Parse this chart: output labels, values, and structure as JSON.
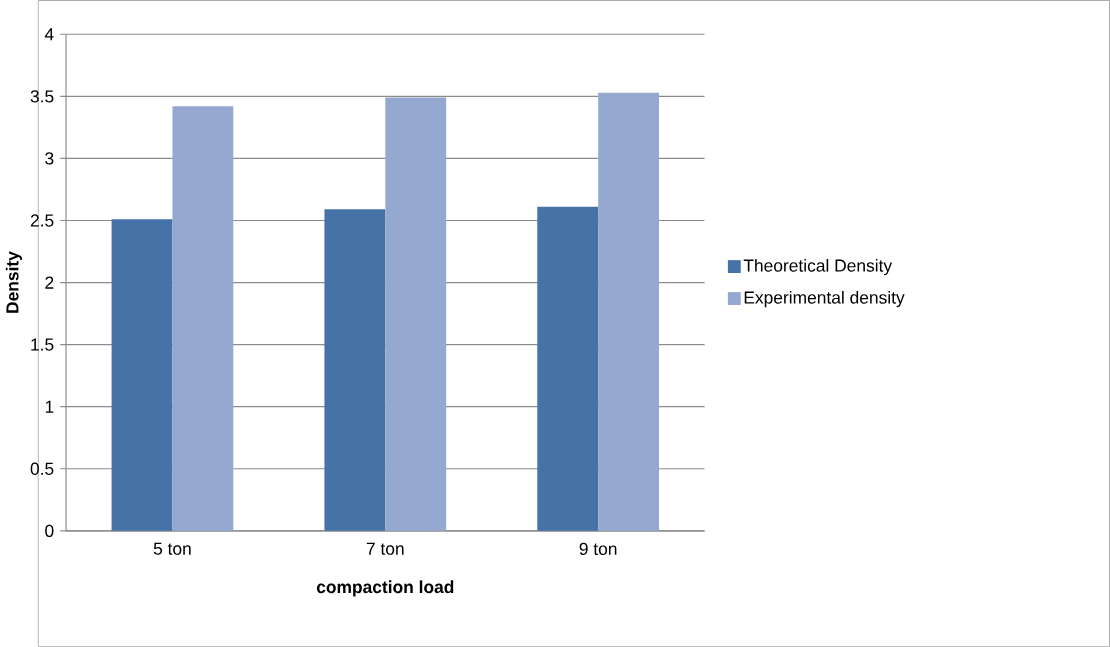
{
  "chart_data": {
    "type": "bar",
    "xlabel": "compaction load",
    "ylabel": "Density",
    "categories": [
      "5 ton",
      "7 ton",
      "9 ton"
    ],
    "series": [
      {
        "name": "Theoretical Density",
        "color": "#4572a7",
        "values": [
          2.51,
          2.59,
          2.61
        ]
      },
      {
        "name": "Experimental density",
        "color": "#95a9d0",
        "values": [
          3.42,
          3.49,
          3.53
        ]
      }
    ],
    "ylim": [
      0,
      4
    ],
    "yticks": [
      0,
      0.5,
      1,
      1.5,
      2,
      2.5,
      3,
      3.5,
      4
    ],
    "grid": "y",
    "legend": "right"
  }
}
